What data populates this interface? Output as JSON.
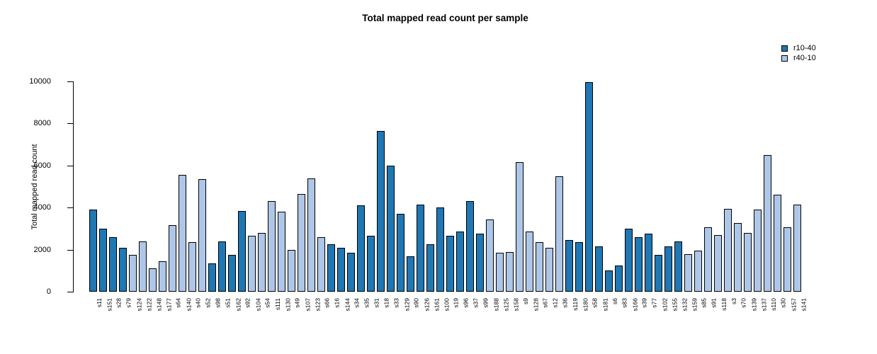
{
  "title": "Total mapped read count per sample",
  "legend": {
    "items": [
      {
        "label": "r10-40",
        "color": "#1f77b4"
      },
      {
        "label": "r40-10",
        "color": "#aec7e8"
      }
    ]
  },
  "chart_data": {
    "type": "bar",
    "title": "Total mapped read count per sample",
    "xlabel": "",
    "ylabel": "Total mapped read count",
    "ylim": [
      0,
      10000
    ],
    "yticks": [
      0,
      2000,
      4000,
      6000,
      8000,
      10000
    ],
    "grid": false,
    "legend_position": "top-right",
    "bar_edge_color": "#000000",
    "series_colors": {
      "r10-40": "#1f77b4",
      "r40-10": "#aec7e8"
    },
    "categories": [
      "s11",
      "s151",
      "s28",
      "s79",
      "s124",
      "s122",
      "s148",
      "s177",
      "s64",
      "s140",
      "s40",
      "s52",
      "s98",
      "s51",
      "s162",
      "s92",
      "s104",
      "s54",
      "s111",
      "s130",
      "s49",
      "s107",
      "s123",
      "s66",
      "s16",
      "s144",
      "s34",
      "s35",
      "s31",
      "s18",
      "s33",
      "s129",
      "s90",
      "s126",
      "s161",
      "s100",
      "s19",
      "s96",
      "s37",
      "s99",
      "s188",
      "s125",
      "s158",
      "s9",
      "s128",
      "s67",
      "s12",
      "s36",
      "s119",
      "s180",
      "s58",
      "s181",
      "s6",
      "s83",
      "s166",
      "s39",
      "s77",
      "s102",
      "s155",
      "s132",
      "s159",
      "s85",
      "s91",
      "s118",
      "s3",
      "s70",
      "s139",
      "s137",
      "s110",
      "s30",
      "s157",
      "s141"
    ],
    "values": [
      3900,
      3000,
      2600,
      2100,
      1750,
      2400,
      1100,
      1450,
      3150,
      5550,
      2350,
      5350,
      1350,
      2400,
      1750,
      3850,
      2650,
      2800,
      4300,
      3800,
      2000,
      4650,
      5400,
      2600,
      2250,
      2100,
      1850,
      4100,
      2650,
      7650,
      6000,
      3700,
      1700,
      4150,
      2250,
      4000,
      2650,
      2850,
      4300,
      2750,
      3450,
      1850,
      1900,
      6150,
      2850,
      2350,
      2100,
      5500,
      2450,
      2350,
      9950,
      2150,
      1000,
      1250,
      3000,
      2600,
      2750,
      1750,
      2150,
      2400,
      1800,
      1950,
      3050,
      2700,
      3950,
      3250,
      2800,
      3900,
      6500,
      4600,
      3050,
      4150
    ],
    "groups": [
      "r10-40",
      "r10-40",
      "r10-40",
      "r10-40",
      "r40-10",
      "r40-10",
      "r40-10",
      "r40-10",
      "r40-10",
      "r40-10",
      "r40-10",
      "r40-10",
      "r10-40",
      "r10-40",
      "r10-40",
      "r10-40",
      "r40-10",
      "r40-10",
      "r40-10",
      "r40-10",
      "r40-10",
      "r40-10",
      "r40-10",
      "r40-10",
      "r10-40",
      "r10-40",
      "r10-40",
      "r10-40",
      "r10-40",
      "r10-40",
      "r10-40",
      "r10-40",
      "r10-40",
      "r10-40",
      "r10-40",
      "r10-40",
      "r10-40",
      "r10-40",
      "r10-40",
      "r10-40",
      "r40-10",
      "r40-10",
      "r40-10",
      "r40-10",
      "r40-10",
      "r40-10",
      "r40-10",
      "r40-10",
      "r10-40",
      "r10-40",
      "r10-40",
      "r10-40",
      "r10-40",
      "r10-40",
      "r10-40",
      "r10-40",
      "r10-40",
      "r10-40",
      "r10-40",
      "r10-40",
      "r40-10",
      "r40-10",
      "r40-10",
      "r40-10",
      "r40-10",
      "r40-10",
      "r40-10",
      "r40-10",
      "r40-10",
      "r40-10",
      "r40-10",
      "r40-10"
    ]
  }
}
